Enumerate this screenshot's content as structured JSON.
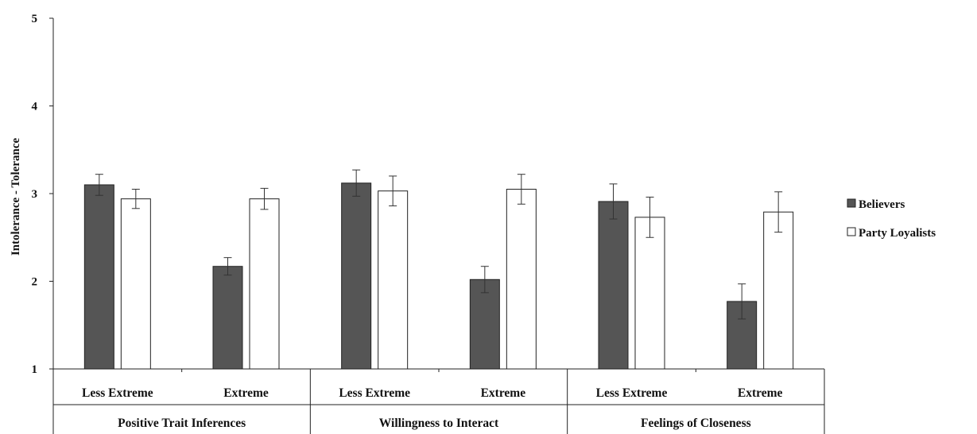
{
  "chart_data": {
    "type": "bar",
    "ylabel": "Intolerance - Tolerance",
    "ylim": [
      1,
      5
    ],
    "yticks": [
      "1",
      "2",
      "3",
      "4",
      "5"
    ],
    "grid": false,
    "legend_position": "right",
    "groups": [
      {
        "label": "Positive Trait Inferences",
        "categories": [
          "Less Extreme",
          "Extreme"
        ]
      },
      {
        "label": "Willingness to Interact",
        "categories": [
          "Less Extreme",
          "Extreme"
        ]
      },
      {
        "label": "Feelings of Closeness",
        "categories": [
          "Less Extreme",
          "Extreme"
        ]
      }
    ],
    "series": [
      {
        "name": "Believers",
        "color": "#555555",
        "values": [
          3.1,
          2.17,
          3.12,
          2.02,
          2.91,
          1.77
        ],
        "errors": [
          0.12,
          0.1,
          0.15,
          0.15,
          0.2,
          0.2
        ]
      },
      {
        "name": "Party Loyalists",
        "color": "#ffffff",
        "values": [
          2.94,
          2.94,
          3.03,
          3.05,
          2.73,
          2.79
        ],
        "errors": [
          0.11,
          0.12,
          0.17,
          0.17,
          0.23,
          0.23
        ]
      }
    ]
  }
}
